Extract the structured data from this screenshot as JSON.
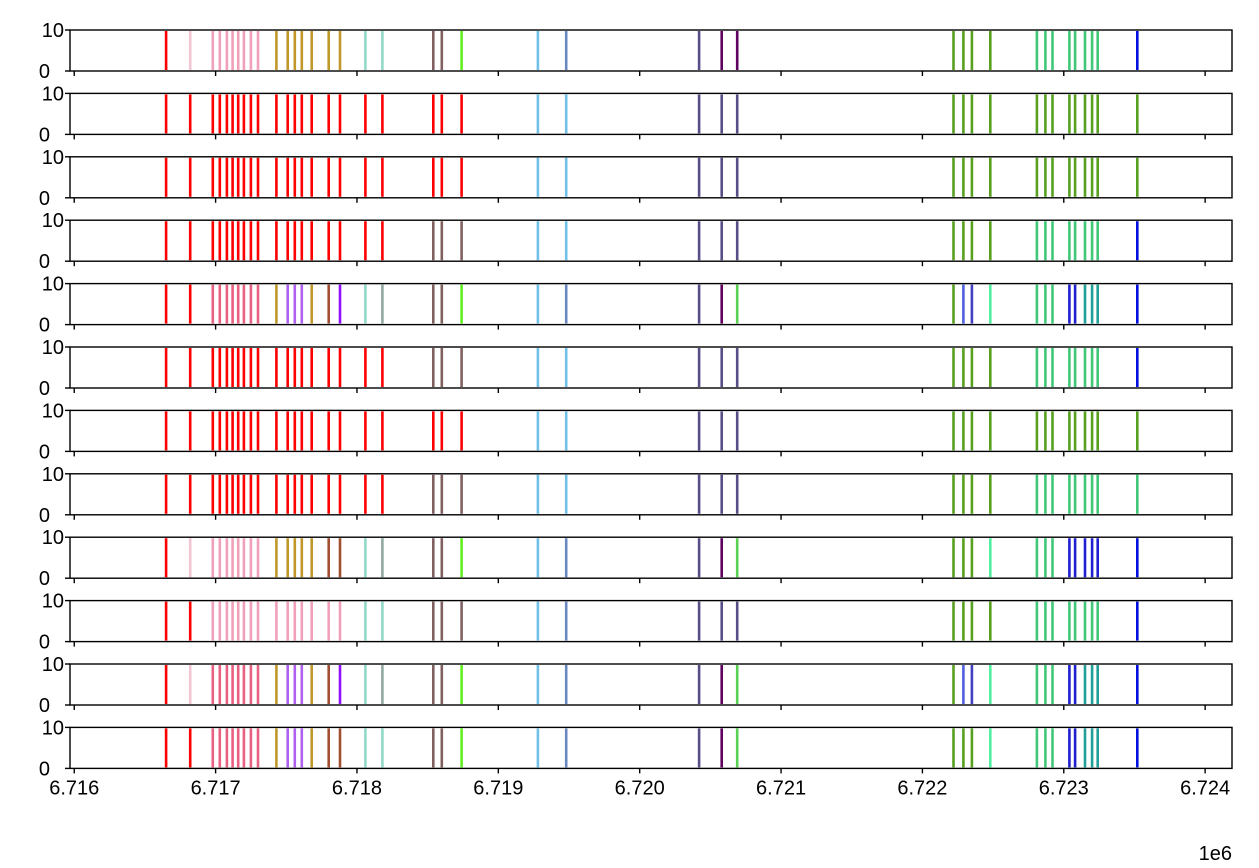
{
  "chart_data": {
    "type": "event-raster",
    "title": "",
    "xlabel": "",
    "ylabel": "",
    "x_multiplier_label": "1e6",
    "xlim": [
      6715970,
      6724190
    ],
    "ylim": [
      0,
      10
    ],
    "y_ticks": [
      "0",
      "10"
    ],
    "x_ticks": [
      {
        "value": 6716000,
        "label": "6.716"
      },
      {
        "value": 6717000,
        "label": "6.717"
      },
      {
        "value": 6718000,
        "label": "6.718"
      },
      {
        "value": 6719000,
        "label": "6.719"
      },
      {
        "value": 6720000,
        "label": "6.720"
      },
      {
        "value": 6721000,
        "label": "6.721"
      },
      {
        "value": 6722000,
        "label": "6.722"
      },
      {
        "value": 6723000,
        "label": "6.723"
      },
      {
        "value": 6724000,
        "label": "6.724"
      }
    ],
    "event_positions": [
      6716650,
      6716820,
      6716980,
      6717030,
      6717080,
      6717120,
      6717160,
      6717200,
      6717250,
      6717300,
      6717430,
      6717510,
      6717560,
      6717610,
      6717680,
      6717800,
      6717880,
      6718060,
      6718180,
      6718540,
      6718600,
      6718740,
      6719280,
      6719480,
      6720420,
      6720580,
      6720690,
      6722220,
      6722290,
      6722350,
      6722480,
      6722810,
      6722870,
      6722920,
      6723040,
      6723080,
      6723150,
      6723200,
      6723240,
      6723520
    ],
    "colors": {
      "red": "#ff0000",
      "pink_light": "#f2c6d2",
      "pink": "#f0a0b8",
      "pink_dark": "#e86082",
      "gold": "#c0982a",
      "gold_dark": "#a08830",
      "lilac": "#b060f0",
      "violet": "#9010ff",
      "brown": "#a05030",
      "mint": "#90d8c8",
      "sage": "#90a8a0",
      "mauve": "#806060",
      "lime": "#60f020",
      "sky": "#70c0e8",
      "steel": "#6a88c0",
      "slate": "#584e88",
      "plum": "#600060",
      "leaf": "#58d050",
      "olive": "#58a020",
      "periwinkle": "#5060e0",
      "indigo": "#4040c0",
      "seafoam": "#50f0a0",
      "emerald": "#40c878",
      "navy": "#2020d0",
      "teal": "#20a098",
      "blue": "#0010e0"
    },
    "rows": [
      [
        "red",
        "pink_light",
        "pink",
        "pink",
        "pink",
        "pink",
        "pink",
        "pink",
        "pink",
        "pink",
        "gold",
        "gold",
        "gold",
        "gold",
        "gold",
        "gold",
        "gold",
        "mint",
        "mint",
        "mauve",
        "mauve",
        "lime",
        "sky",
        "steel",
        "slate",
        "plum",
        "plum",
        "olive",
        "olive",
        "olive",
        "olive",
        "emerald",
        "emerald",
        "emerald",
        "emerald",
        "emerald",
        "emerald",
        "emerald",
        "emerald",
        "blue"
      ],
      [
        "red",
        "red",
        "red",
        "red",
        "red",
        "red",
        "red",
        "red",
        "red",
        "red",
        "red",
        "red",
        "red",
        "red",
        "red",
        "red",
        "red",
        "red",
        "red",
        "red",
        "red",
        "red",
        "sky",
        "sky",
        "slate",
        "slate",
        "slate",
        "olive",
        "olive",
        "olive",
        "olive",
        "olive",
        "olive",
        "olive",
        "olive",
        "olive",
        "olive",
        "olive",
        "olive",
        "olive"
      ],
      [
        "red",
        "red",
        "red",
        "red",
        "red",
        "red",
        "red",
        "red",
        "red",
        "red",
        "red",
        "red",
        "red",
        "red",
        "red",
        "red",
        "red",
        "red",
        "red",
        "red",
        "red",
        "red",
        "sky",
        "sky",
        "slate",
        "slate",
        "slate",
        "olive",
        "olive",
        "olive",
        "olive",
        "olive",
        "olive",
        "olive",
        "olive",
        "olive",
        "olive",
        "olive",
        "olive",
        "olive"
      ],
      [
        "red",
        "red",
        "red",
        "red",
        "red",
        "red",
        "red",
        "red",
        "red",
        "red",
        "red",
        "red",
        "red",
        "red",
        "red",
        "red",
        "red",
        "red",
        "red",
        "mauve",
        "mauve",
        "mauve",
        "sky",
        "sky",
        "slate",
        "slate",
        "slate",
        "olive",
        "olive",
        "olive",
        "olive",
        "emerald",
        "emerald",
        "emerald",
        "emerald",
        "emerald",
        "emerald",
        "emerald",
        "emerald",
        "blue"
      ],
      [
        "red",
        "red",
        "pink_dark",
        "pink_dark",
        "pink_dark",
        "pink_dark",
        "pink_dark",
        "pink_dark",
        "pink_dark",
        "pink_dark",
        "gold",
        "lilac",
        "lilac",
        "lilac",
        "gold",
        "brown",
        "violet",
        "mint",
        "sage",
        "mauve",
        "mauve",
        "lime",
        "sky",
        "steel",
        "slate",
        "plum",
        "leaf",
        "olive",
        "periwinkle",
        "indigo",
        "seafoam",
        "emerald",
        "emerald",
        "emerald",
        "navy",
        "navy",
        "teal",
        "teal",
        "teal",
        "blue"
      ],
      [
        "red",
        "red",
        "red",
        "red",
        "red",
        "red",
        "red",
        "red",
        "red",
        "red",
        "red",
        "red",
        "red",
        "red",
        "red",
        "red",
        "red",
        "red",
        "red",
        "mauve",
        "mauve",
        "mauve",
        "sky",
        "sky",
        "slate",
        "slate",
        "slate",
        "olive",
        "olive",
        "olive",
        "olive",
        "emerald",
        "emerald",
        "emerald",
        "emerald",
        "emerald",
        "emerald",
        "emerald",
        "emerald",
        "blue"
      ],
      [
        "red",
        "red",
        "red",
        "red",
        "red",
        "red",
        "red",
        "red",
        "red",
        "red",
        "red",
        "red",
        "red",
        "red",
        "red",
        "red",
        "red",
        "red",
        "red",
        "red",
        "red",
        "red",
        "sky",
        "sky",
        "slate",
        "slate",
        "slate",
        "olive",
        "olive",
        "olive",
        "olive",
        "olive",
        "olive",
        "olive",
        "olive",
        "olive",
        "olive",
        "olive",
        "olive",
        "olive"
      ],
      [
        "red",
        "red",
        "red",
        "red",
        "red",
        "red",
        "red",
        "red",
        "red",
        "red",
        "red",
        "red",
        "red",
        "red",
        "red",
        "red",
        "red",
        "red",
        "red",
        "mauve",
        "mauve",
        "mauve",
        "sky",
        "sky",
        "slate",
        "slate",
        "slate",
        "olive",
        "olive",
        "olive",
        "olive",
        "emerald",
        "emerald",
        "emerald",
        "emerald",
        "emerald",
        "emerald",
        "emerald",
        "emerald",
        "emerald"
      ],
      [
        "red",
        "pink_light",
        "pink",
        "pink",
        "pink",
        "pink",
        "pink",
        "pink",
        "pink",
        "pink",
        "gold",
        "gold",
        "gold",
        "gold",
        "gold",
        "brown",
        "brown",
        "mint",
        "sage",
        "mauve",
        "mauve",
        "lime",
        "sky",
        "steel",
        "slate",
        "plum",
        "leaf",
        "olive",
        "olive",
        "olive",
        "seafoam",
        "emerald",
        "emerald",
        "emerald",
        "navy",
        "navy",
        "navy",
        "navy",
        "navy",
        "blue"
      ],
      [
        "red",
        "red",
        "pink",
        "pink",
        "pink",
        "pink",
        "pink",
        "pink",
        "pink",
        "pink",
        "pink",
        "pink",
        "pink",
        "pink",
        "pink",
        "pink",
        "pink",
        "mint",
        "mint",
        "mauve",
        "mauve",
        "mauve",
        "sky",
        "steel",
        "slate",
        "slate",
        "slate",
        "olive",
        "olive",
        "olive",
        "olive",
        "emerald",
        "emerald",
        "emerald",
        "emerald",
        "emerald",
        "emerald",
        "emerald",
        "emerald",
        "blue"
      ],
      [
        "red",
        "pink_light",
        "pink_dark",
        "pink_dark",
        "pink_dark",
        "pink_dark",
        "pink_dark",
        "pink_dark",
        "pink_dark",
        "pink_dark",
        "gold",
        "lilac",
        "lilac",
        "lilac",
        "gold",
        "brown",
        "violet",
        "mint",
        "sage",
        "mauve",
        "mauve",
        "lime",
        "sky",
        "steel",
        "slate",
        "plum",
        "leaf",
        "olive",
        "periwinkle",
        "indigo",
        "seafoam",
        "emerald",
        "emerald",
        "emerald",
        "navy",
        "navy",
        "teal",
        "teal",
        "teal",
        "blue"
      ],
      [
        "red",
        "red",
        "pink_dark",
        "pink_dark",
        "pink_dark",
        "pink_dark",
        "pink_dark",
        "pink_dark",
        "pink_dark",
        "pink_dark",
        "gold",
        "lilac",
        "lilac",
        "lilac",
        "gold",
        "brown",
        "brown",
        "mint",
        "mint",
        "mauve",
        "mauve",
        "lime",
        "sky",
        "steel",
        "slate",
        "plum",
        "leaf",
        "olive",
        "olive",
        "olive",
        "seafoam",
        "emerald",
        "emerald",
        "emerald",
        "navy",
        "navy",
        "teal",
        "teal",
        "teal",
        "blue"
      ]
    ]
  }
}
